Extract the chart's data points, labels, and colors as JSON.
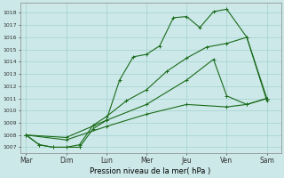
{
  "xlabel": "Pression niveau de la mer( hPa )",
  "xtick_labels": [
    "Mar",
    "Dim",
    "Lun",
    "Mer",
    "Jeu",
    "Ven",
    "Sam"
  ],
  "ylim": [
    1006.5,
    1018.8
  ],
  "yticks": [
    1007,
    1008,
    1009,
    1010,
    1011,
    1012,
    1013,
    1014,
    1015,
    1016,
    1017,
    1018
  ],
  "bg_color": "#cce8e8",
  "grid_color": "#99cccc",
  "line_color": "#1a6b1a",
  "line1_x": [
    0,
    0.33,
    0.67,
    1.0,
    1.33,
    1.67,
    2.0,
    2.33,
    2.67,
    3.0,
    3.33,
    3.67,
    4.0,
    4.33,
    4.67,
    5.0,
    5.5,
    6.0
  ],
  "line1_y": [
    1008.0,
    1007.2,
    1007.0,
    1007.0,
    1007.0,
    1008.5,
    1009.2,
    1012.5,
    1014.4,
    1014.6,
    1015.3,
    1017.6,
    1017.7,
    1016.8,
    1018.1,
    1018.3,
    1016.0,
    1011.0
  ],
  "line2_x": [
    0,
    0.33,
    0.67,
    1.0,
    1.33,
    1.67,
    2.0,
    2.5,
    3.0,
    3.5,
    4.0,
    4.5,
    5.0,
    5.5,
    6.0
  ],
  "line2_y": [
    1008.0,
    1007.2,
    1007.0,
    1007.0,
    1007.2,
    1008.8,
    1009.5,
    1010.8,
    1011.7,
    1013.2,
    1014.3,
    1015.2,
    1015.5,
    1016.0,
    1010.8
  ],
  "line3_x": [
    0,
    1.0,
    2.0,
    3.0,
    4.0,
    4.67,
    5.0,
    5.5,
    6.0
  ],
  "line3_y": [
    1008.0,
    1007.8,
    1009.2,
    1010.5,
    1012.5,
    1014.2,
    1011.2,
    1010.5,
    1011.0
  ],
  "line4_x": [
    0,
    1.0,
    2.0,
    3.0,
    4.0,
    5.0,
    5.5,
    6.0
  ],
  "line4_y": [
    1008.0,
    1007.6,
    1008.7,
    1009.7,
    1010.5,
    1010.3,
    1010.5,
    1011.0
  ]
}
